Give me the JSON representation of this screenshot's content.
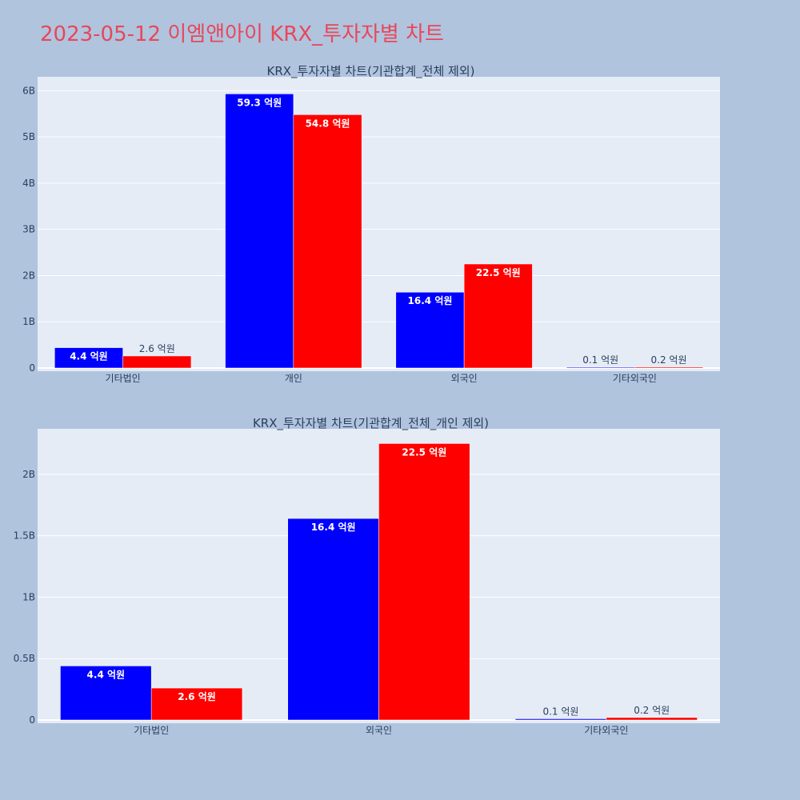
{
  "page": {
    "title": "2023-05-12 이엠앤아이 KRX_투자자별 차트",
    "title_color": "#e8475a",
    "background": "#b0c4de",
    "plot_background": "#e5ecf6"
  },
  "chart_data": [
    {
      "type": "bar",
      "title": "KRX_투자자별 차트(기관합계_전체 제외)",
      "categories": [
        "기타법인",
        "개인",
        "외국인",
        "기타외국인"
      ],
      "series": [
        {
          "color": "#0000ff",
          "values": [
            440000000,
            5930000000,
            1640000000,
            10000000
          ],
          "labels": [
            "4.4 억원",
            "59.3 억원",
            "16.4 억원",
            "0.1 억원"
          ]
        },
        {
          "color": "#ff0000",
          "values": [
            260000000,
            5480000000,
            2250000000,
            20000000
          ],
          "labels": [
            "2.6 억원",
            "54.8 억원",
            "22.5 억원",
            "0.2 억원"
          ]
        }
      ],
      "ylim": [
        0,
        6300000000
      ],
      "yticks": [
        0,
        1000000000,
        2000000000,
        3000000000,
        4000000000,
        5000000000,
        6000000000
      ],
      "ytick_labels": [
        "0",
        "1B",
        "2B",
        "3B",
        "4B",
        "5B",
        "6B"
      ],
      "grid": true,
      "xlabel": "",
      "ylabel": ""
    },
    {
      "type": "bar",
      "title": "KRX_투자자별 차트(기관합계_전체_개인 제외)",
      "categories": [
        "기타법인",
        "외국인",
        "기타외국인"
      ],
      "series": [
        {
          "color": "#0000ff",
          "values": [
            440000000,
            1640000000,
            10000000
          ],
          "labels": [
            "4.4 억원",
            "16.4 억원",
            "0.1 억원"
          ]
        },
        {
          "color": "#ff0000",
          "values": [
            260000000,
            2250000000,
            20000000
          ],
          "labels": [
            "2.6 억원",
            "22.5 억원",
            "0.2 억원"
          ]
        }
      ],
      "ylim": [
        0,
        2370000000
      ],
      "yticks": [
        0,
        500000000,
        1000000000,
        1500000000,
        2000000000
      ],
      "ytick_labels": [
        "0",
        "0.5B",
        "1B",
        "1.5B",
        "2B"
      ],
      "grid": true,
      "xlabel": "",
      "ylabel": ""
    }
  ]
}
